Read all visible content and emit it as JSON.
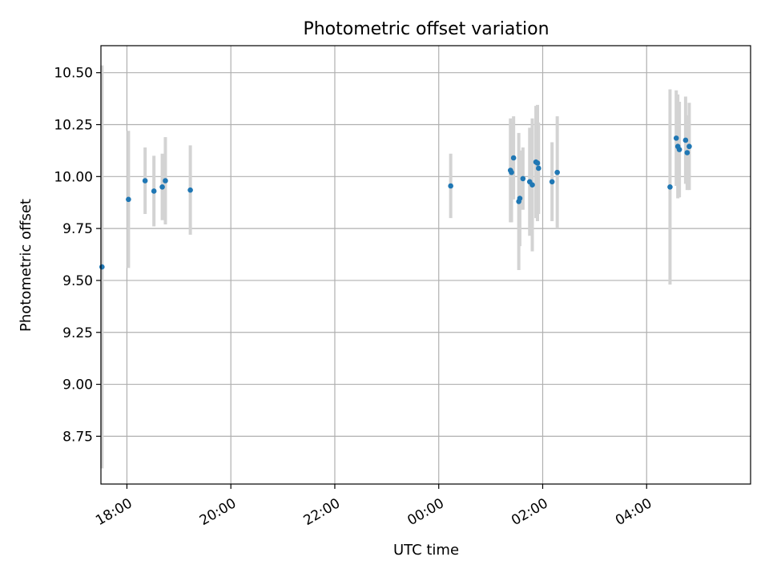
{
  "chart_data": {
    "type": "scatter",
    "title": "Photometric offset variation",
    "xlabel": "UTC time",
    "ylabel": "Photometric offset",
    "x_unit": "hours",
    "xlim": [
      17.5,
      30.0
    ],
    "ylim": [
      8.52,
      10.63
    ],
    "x_ticks": [
      {
        "value": 18,
        "label": "18:00"
      },
      {
        "value": 20,
        "label": "20:00"
      },
      {
        "value": 22,
        "label": "22:00"
      },
      {
        "value": 24,
        "label": "00:00"
      },
      {
        "value": 26,
        "label": "02:00"
      },
      {
        "value": 28,
        "label": "04:00"
      }
    ],
    "y_ticks": [
      {
        "value": 8.75,
        "label": "8.75"
      },
      {
        "value": 9.0,
        "label": "9.00"
      },
      {
        "value": 9.25,
        "label": "9.25"
      },
      {
        "value": 9.5,
        "label": "9.50"
      },
      {
        "value": 9.75,
        "label": "9.75"
      },
      {
        "value": 10.0,
        "label": "10.00"
      },
      {
        "value": 10.25,
        "label": "10.25"
      },
      {
        "value": 10.5,
        "label": "10.50"
      }
    ],
    "grid": true,
    "colors": {
      "point": "#1f77b4",
      "errorbar": "#d3d3d3"
    },
    "points": [
      {
        "x": 17.52,
        "y": 9.565,
        "err": 0.97
      },
      {
        "x": 18.03,
        "y": 9.89,
        "err": 0.33
      },
      {
        "x": 18.35,
        "y": 9.98,
        "err": 0.16
      },
      {
        "x": 18.52,
        "y": 9.93,
        "err": 0.17
      },
      {
        "x": 18.68,
        "y": 9.95,
        "err": 0.16
      },
      {
        "x": 18.74,
        "y": 9.98,
        "err": 0.21
      },
      {
        "x": 19.22,
        "y": 9.935,
        "err": 0.215
      },
      {
        "x": 24.23,
        "y": 9.955,
        "err": 0.155
      },
      {
        "x": 25.38,
        "y": 10.03,
        "err": 0.25
      },
      {
        "x": 25.4,
        "y": 10.02,
        "err": 0.24
      },
      {
        "x": 25.44,
        "y": 10.09,
        "err": 0.2
      },
      {
        "x": 25.54,
        "y": 9.88,
        "err": 0.33
      },
      {
        "x": 25.56,
        "y": 9.895,
        "err": 0.23
      },
      {
        "x": 25.62,
        "y": 9.99,
        "err": 0.15
      },
      {
        "x": 25.75,
        "y": 9.975,
        "err": 0.26
      },
      {
        "x": 25.8,
        "y": 9.96,
        "err": 0.32
      },
      {
        "x": 25.87,
        "y": 10.07,
        "err": 0.27
      },
      {
        "x": 25.9,
        "y": 10.065,
        "err": 0.28
      },
      {
        "x": 25.92,
        "y": 10.04,
        "err": 0.22
      },
      {
        "x": 26.18,
        "y": 9.975,
        "err": 0.19
      },
      {
        "x": 26.28,
        "y": 10.02,
        "err": 0.27
      },
      {
        "x": 28.45,
        "y": 9.95,
        "err": 0.47
      },
      {
        "x": 28.57,
        "y": 10.185,
        "err": 0.23
      },
      {
        "x": 28.6,
        "y": 10.145,
        "err": 0.25
      },
      {
        "x": 28.63,
        "y": 10.13,
        "err": 0.23
      },
      {
        "x": 28.75,
        "y": 10.175,
        "err": 0.21
      },
      {
        "x": 28.78,
        "y": 10.115,
        "err": 0.18
      },
      {
        "x": 28.82,
        "y": 10.145,
        "err": 0.21
      }
    ]
  }
}
